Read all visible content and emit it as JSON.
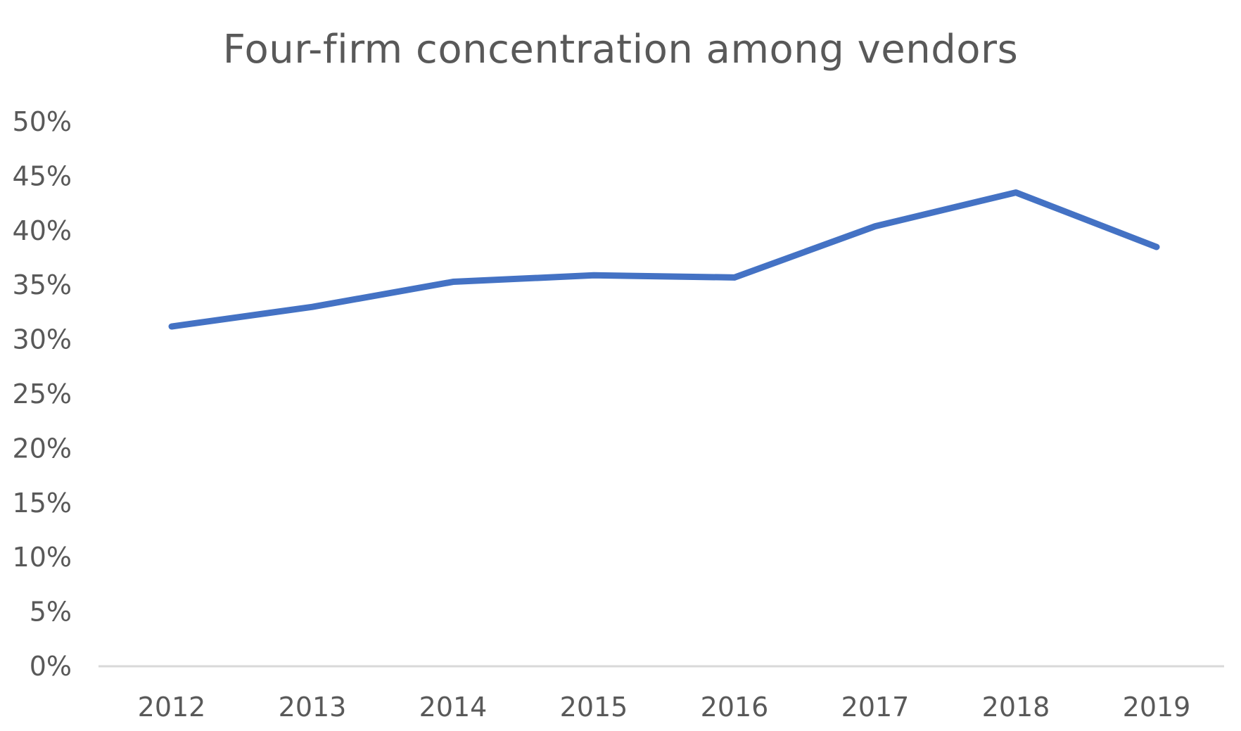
{
  "chart_data": {
    "type": "line",
    "title": "Four-firm concentration among vendors",
    "xlabel": "",
    "ylabel": "",
    "x": [
      "2012",
      "2013",
      "2014",
      "2015",
      "2016",
      "2017",
      "2018",
      "2019"
    ],
    "series": [
      {
        "values": [
          0.312,
          0.33,
          0.353,
          0.359,
          0.357,
          0.404,
          0.435,
          0.385
        ],
        "color": "#4472C4"
      }
    ],
    "y_ticks": [
      "0%",
      "5%",
      "10%",
      "15%",
      "20%",
      "25%",
      "30%",
      "35%",
      "40%",
      "45%",
      "50%"
    ],
    "ylim": [
      0,
      0.5
    ],
    "grid": false,
    "legend": "none"
  },
  "colors": {
    "line": "#4472C4",
    "axis": "#D9D9D9",
    "text": "#595959"
  }
}
